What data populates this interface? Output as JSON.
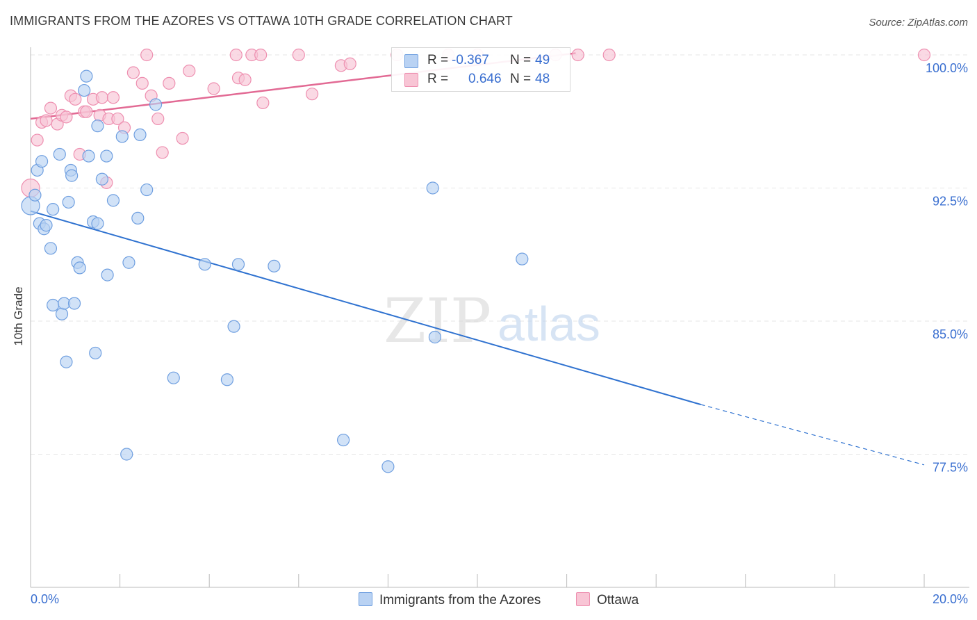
{
  "title": "IMMIGRANTS FROM THE AZORES VS OTTAWA 10TH GRADE CORRELATION CHART",
  "source": "Source: ZipAtlas.com",
  "watermark": {
    "zip": "ZIP",
    "atlas": "atlas"
  },
  "legend": {
    "series1": {
      "r_label": "R =",
      "r_value": "-0.367",
      "n_label": "N =",
      "n_value": "49"
    },
    "series2": {
      "r_label": "R =",
      "r_value": "0.646",
      "n_label": "N =",
      "n_value": "48"
    }
  },
  "colors": {
    "blue_fill": "#b9d2f3",
    "blue_stroke": "#6f9fe0",
    "blue_line": "#2f72d0",
    "pink_fill": "#f8c5d5",
    "pink_stroke": "#ee8fb0",
    "pink_line": "#e26a94",
    "grid": "#e6e6e6",
    "tick_label": "#3a6fd0"
  },
  "chart_data": {
    "type": "scatter",
    "title": "IMMIGRANTS FROM THE AZORES VS OTTAWA 10TH GRADE CORRELATION CHART",
    "xlabel": "",
    "ylabel": "10th Grade",
    "xlim": [
      0.0,
      20.0
    ],
    "ylim": [
      70.0,
      100.0
    ],
    "x_tick_labels": [
      "0.0%",
      "20.0%"
    ],
    "y_ticks": [
      77.5,
      85.0,
      92.5,
      100.0
    ],
    "y_tick_labels": [
      "77.5%",
      "85.0%",
      "92.5%",
      "100.0%"
    ],
    "grid": true,
    "series": [
      {
        "name": "Immigrants from the Azores",
        "color": "#6f9fe0",
        "trend": {
          "x0": 0.0,
          "y0": 91.2,
          "x1": 15.0,
          "y1": 80.3,
          "dashed_to_x": 20.0,
          "dashed_to_y": 76.9
        },
        "points": [
          [
            0.0,
            91.5
          ],
          [
            0.1,
            92.1
          ],
          [
            0.15,
            93.5
          ],
          [
            0.2,
            90.5
          ],
          [
            0.25,
            94.0
          ],
          [
            0.3,
            90.2
          ],
          [
            0.35,
            90.4
          ],
          [
            0.45,
            89.1
          ],
          [
            0.5,
            91.3
          ],
          [
            0.5,
            85.9
          ],
          [
            0.65,
            94.4
          ],
          [
            0.7,
            85.4
          ],
          [
            0.75,
            86.0
          ],
          [
            0.8,
            82.7
          ],
          [
            0.85,
            91.7
          ],
          [
            0.9,
            93.5
          ],
          [
            0.92,
            93.2
          ],
          [
            0.98,
            86.0
          ],
          [
            1.05,
            88.3
          ],
          [
            1.1,
            88.0
          ],
          [
            1.2,
            98.0
          ],
          [
            1.25,
            98.8
          ],
          [
            1.3,
            94.3
          ],
          [
            1.4,
            90.6
          ],
          [
            1.45,
            83.2
          ],
          [
            1.5,
            96.0
          ],
          [
            1.5,
            90.5
          ],
          [
            1.6,
            93.0
          ],
          [
            1.7,
            94.3
          ],
          [
            1.72,
            87.6
          ],
          [
            1.85,
            91.8
          ],
          [
            2.05,
            95.4
          ],
          [
            2.15,
            77.5
          ],
          [
            2.2,
            88.3
          ],
          [
            2.4,
            90.8
          ],
          [
            2.45,
            95.5
          ],
          [
            2.6,
            92.4
          ],
          [
            2.8,
            97.2
          ],
          [
            3.2,
            81.8
          ],
          [
            3.9,
            88.2
          ],
          [
            4.4,
            81.7
          ],
          [
            4.55,
            84.7
          ],
          [
            4.65,
            88.2
          ],
          [
            5.45,
            88.1
          ],
          [
            7.0,
            78.3
          ],
          [
            8.0,
            76.8
          ],
          [
            9.0,
            92.5
          ],
          [
            9.05,
            84.1
          ],
          [
            11.0,
            88.5
          ]
        ]
      },
      {
        "name": "Ottawa",
        "color": "#ee8fb0",
        "trend": {
          "x0": 0.0,
          "y0": 96.4,
          "x1": 12.2,
          "y1": 100.1
        },
        "points": [
          [
            0.0,
            92.5
          ],
          [
            0.15,
            95.2
          ],
          [
            0.25,
            96.2
          ],
          [
            0.35,
            96.3
          ],
          [
            0.45,
            97.0
          ],
          [
            0.6,
            96.1
          ],
          [
            0.7,
            96.6
          ],
          [
            0.8,
            96.5
          ],
          [
            0.9,
            97.7
          ],
          [
            1.0,
            97.5
          ],
          [
            1.1,
            94.4
          ],
          [
            1.2,
            96.8
          ],
          [
            1.25,
            96.8
          ],
          [
            1.4,
            97.5
          ],
          [
            1.55,
            96.6
          ],
          [
            1.6,
            97.6
          ],
          [
            1.7,
            92.8
          ],
          [
            1.75,
            96.4
          ],
          [
            1.85,
            97.6
          ],
          [
            1.95,
            96.4
          ],
          [
            2.1,
            95.9
          ],
          [
            2.3,
            99.0
          ],
          [
            2.5,
            98.4
          ],
          [
            2.6,
            100.0
          ],
          [
            2.7,
            97.7
          ],
          [
            2.85,
            96.4
          ],
          [
            2.95,
            94.5
          ],
          [
            3.1,
            98.4
          ],
          [
            3.4,
            95.3
          ],
          [
            3.55,
            99.1
          ],
          [
            4.1,
            98.1
          ],
          [
            4.6,
            100.0
          ],
          [
            4.65,
            98.7
          ],
          [
            4.8,
            98.6
          ],
          [
            4.95,
            100.0
          ],
          [
            5.15,
            100.0
          ],
          [
            5.2,
            97.3
          ],
          [
            6.0,
            100.0
          ],
          [
            6.3,
            97.8
          ],
          [
            6.95,
            99.4
          ],
          [
            7.15,
            99.5
          ],
          [
            8.2,
            100.0
          ],
          [
            9.35,
            100.0
          ],
          [
            10.0,
            100.0
          ],
          [
            11.75,
            100.0
          ],
          [
            12.25,
            100.0
          ],
          [
            12.95,
            100.0
          ],
          [
            20.0,
            100.0
          ]
        ]
      }
    ]
  }
}
